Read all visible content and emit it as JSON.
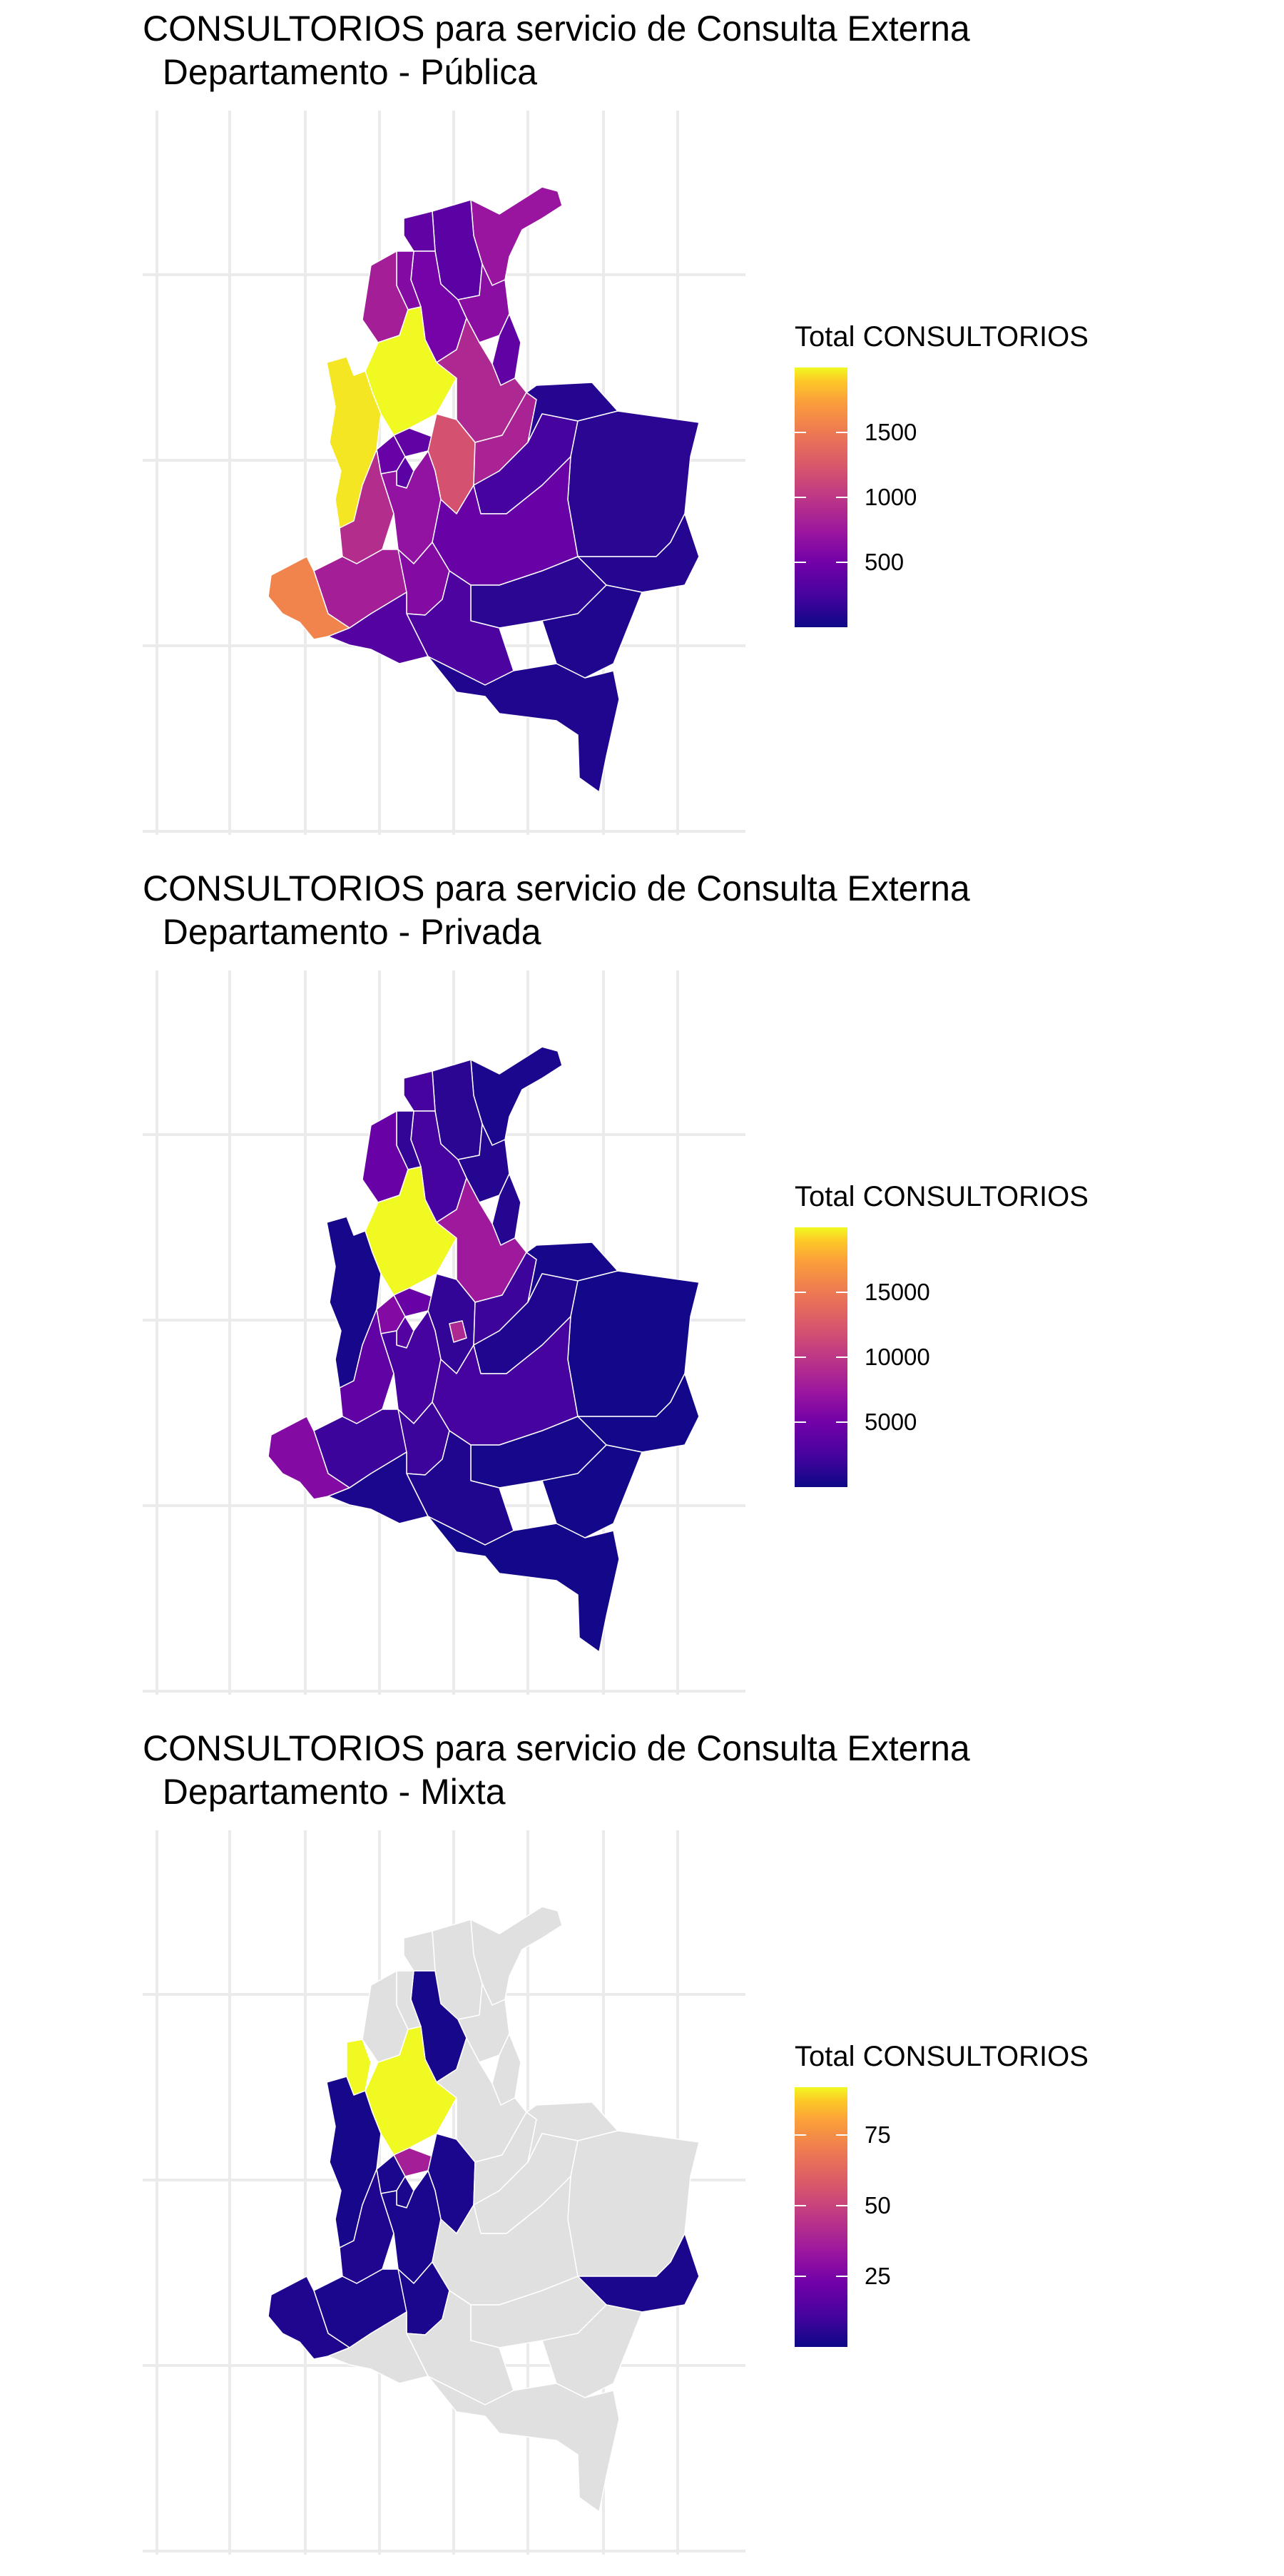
{
  "panels": [
    {
      "title": "CONSULTORIOS para servicio de Consulta Externa\n  Departamento - Pública",
      "legend_title": "Total CONSULTORIOS",
      "scale_max": 2000,
      "ticks": [
        {
          "value": 500,
          "label": "500"
        },
        {
          "value": 1000,
          "label": "1000"
        },
        {
          "value": 1500,
          "label": "1500"
        }
      ],
      "colors": {
        "choco": 0.98,
        "antioquia": 1.0,
        "cordoba": 0.4,
        "sucre": 0.3,
        "bolivar": 0.26,
        "atlantico": 0.2,
        "magdalena": 0.18,
        "cesar": 0.32,
        "laguajira": 0.36,
        "norte_santander": 0.2,
        "santander": 0.44,
        "boyaca": 0.42,
        "cundinamarca": 0.6,
        "arauca": 0.05,
        "casanare": 0.12,
        "vichada": 0.06,
        "caldas": 0.2,
        "risaralda": 0.22,
        "quindio": 0.18,
        "tolima": 0.34,
        "valle": 0.46,
        "cauca": 0.4,
        "narino": 0.78,
        "huila": 0.3,
        "meta": 0.22,
        "guainia": 0.05,
        "guaviare": 0.06,
        "caqueta": 0.14,
        "putumayo": 0.16,
        "vaupes": 0.04,
        "amazonas": 0.04
      }
    },
    {
      "title": "CONSULTORIOS para servicio de Consulta Externa\n  Departamento - Privada",
      "legend_title": "Total CONSULTORIOS",
      "scale_max": 20000,
      "ticks": [
        {
          "value": 5000,
          "label": "5000"
        },
        {
          "value": 10000,
          "label": "10000"
        },
        {
          "value": 15000,
          "label": "15000"
        }
      ],
      "colors": {
        "choco": 0.02,
        "antioquia": 1.0,
        "cordoba": 0.22,
        "sucre": 0.08,
        "bolivar": 0.12,
        "atlantico": 0.12,
        "magdalena": 0.06,
        "cesar": 0.05,
        "laguajira": 0.03,
        "norte_santander": 0.05,
        "santander": 0.38,
        "boyaca": 0.1,
        "cundinamarca": 0.08,
        "bogota": 0.44,
        "arauca": 0.02,
        "casanare": 0.04,
        "vichada": 0.01,
        "caldas": 0.22,
        "risaralda": 0.3,
        "quindio": 0.16,
        "tolima": 0.12,
        "valle": 0.2,
        "cauca": 0.1,
        "narino": 0.3,
        "huila": 0.1,
        "meta": 0.12,
        "guainia": 0.01,
        "guaviare": 0.02,
        "caqueta": 0.04,
        "putumayo": 0.03,
        "vaupes": 0.01,
        "amazonas": 0.01
      }
    },
    {
      "title": "CONSULTORIOS para servicio de Consulta Externa\n  Departamento - Mixta",
      "legend_title": "Total CONSULTORIOS",
      "scale_max": 92,
      "ticks": [
        {
          "value": 25,
          "label": "25"
        },
        {
          "value": 50,
          "label": "50"
        },
        {
          "value": 75,
          "label": "75"
        }
      ],
      "colors": {
        "choco": 0.02,
        "antioquia": 1.0,
        "uraba": 1.0,
        "bolivar": 0.02,
        "caldas": 0.4,
        "risaralda": 0.03,
        "quindio": 0.03,
        "tolima": 0.03,
        "valle": 0.04,
        "cauca": 0.03,
        "narino": 0.04,
        "huila": 0.03,
        "cundinamarca": 0.03,
        "guainia": 0.03
      }
    }
  ]
}
